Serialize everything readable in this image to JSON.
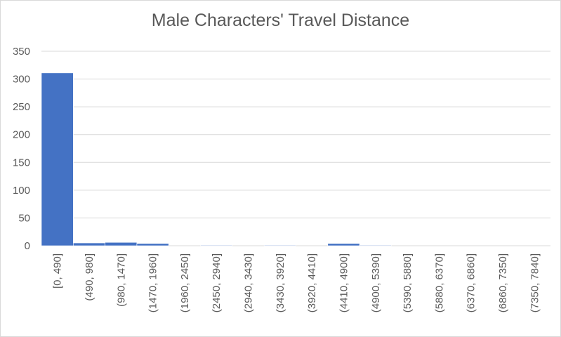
{
  "chart_data": {
    "type": "bar",
    "title": "Male Characters' Travel Distance",
    "xlabel": "",
    "ylabel": "",
    "categories": [
      "[0, 490]",
      "(490, 980]",
      "(980, 1470]",
      "(1470, 1960]",
      "(1960, 2450]",
      "(2450, 2940]",
      "(2940, 3430]",
      "(3430, 3920]",
      "(3920, 4410]",
      "(4410, 4900]",
      "(4900, 5390]",
      "(5390, 5880]",
      "(5880, 6370]",
      "(6370, 6860]",
      "(6860, 7350]",
      "(7350, 7840]"
    ],
    "values": [
      311,
      5,
      6,
      4,
      0,
      1,
      0,
      1,
      0,
      4,
      1,
      0,
      0,
      0,
      0,
      0
    ],
    "ylim": [
      0,
      350
    ],
    "yticks": [
      0,
      50,
      100,
      150,
      200,
      250,
      300,
      350
    ],
    "grid": true,
    "legend": "none",
    "colors": {
      "bar": "#4472c4",
      "grid": "#d9d9d9",
      "text": "#595959"
    }
  }
}
